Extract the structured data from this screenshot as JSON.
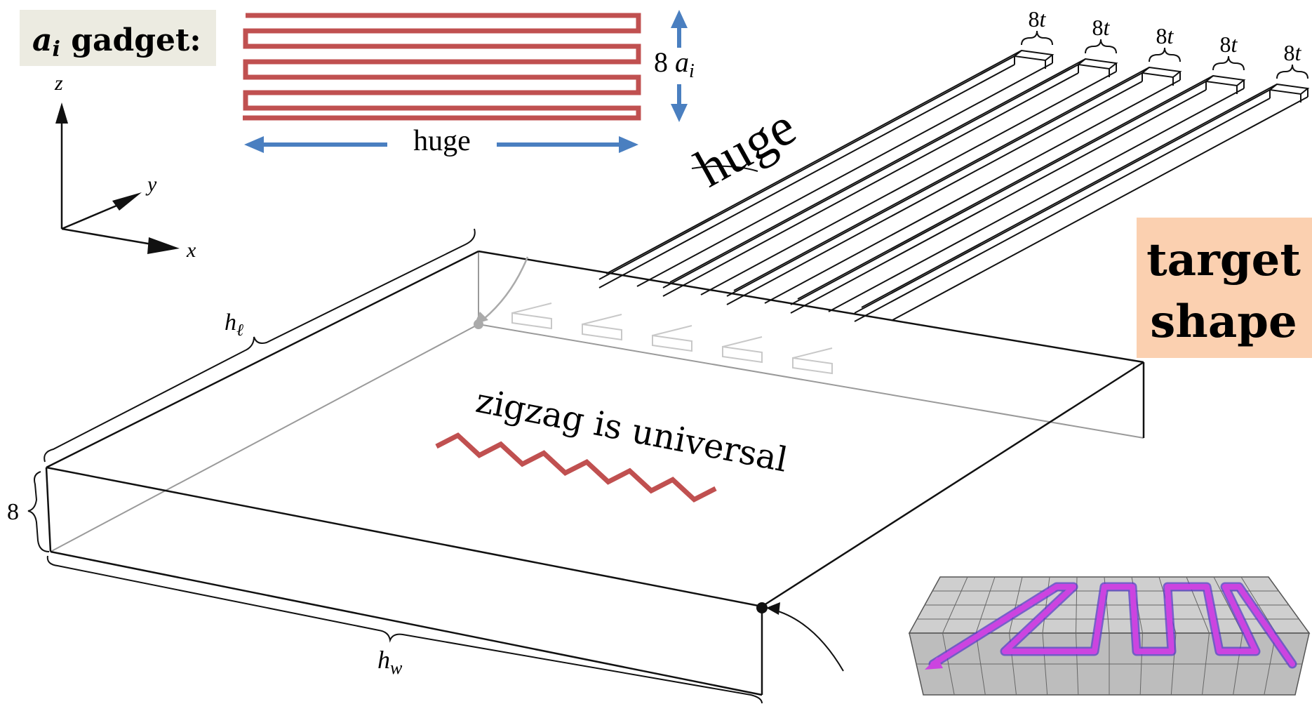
{
  "gadget_label": {
    "var": "a",
    "sub": "i",
    "text": " gadget:"
  },
  "gadget_height_label": {
    "num": "8 ",
    "var": "a",
    "sub": "i"
  },
  "gadget_width_label": "huge",
  "axes": {
    "z": "z",
    "y": "y",
    "x": "x"
  },
  "strip_width_labels": [
    "8t",
    "8t",
    "8t",
    "8t",
    "8t"
  ],
  "strip_length_label": "huge",
  "target_label": [
    "target",
    "shape"
  ],
  "box_labels": {
    "length": {
      "var": "h",
      "sub": "ℓ"
    },
    "width": {
      "var": "h",
      "sub": "w"
    },
    "height": "8"
  },
  "zigzag_label": "zigzag is universal",
  "colors": {
    "gadget_red": "#c05050",
    "arrow_blue": "#4a7fc0",
    "label_box": "#ecebe1",
    "target_box": "#fbd0b0",
    "tube_magenta": "#cc44e0"
  }
}
